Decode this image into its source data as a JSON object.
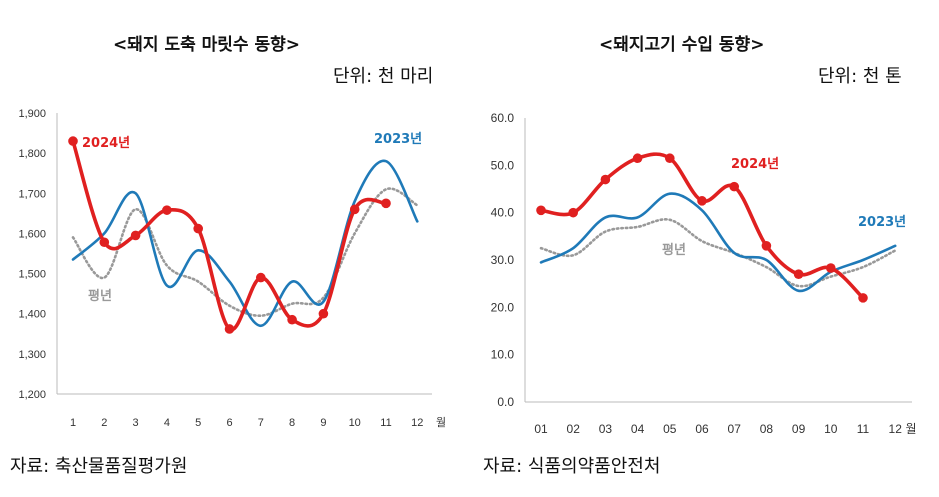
{
  "chart_data": [
    {
      "type": "line",
      "title": "<돼지 도축 마릿수 동향>",
      "unit": "단위: 천 마리",
      "source": "자료: 축산물품질평가원",
      "x_ticks": [
        "1",
        "2",
        "3",
        "4",
        "5",
        "6",
        "7",
        "8",
        "9",
        "10",
        "11",
        "12"
      ],
      "x_unit": "월",
      "ylim": [
        1200,
        1900
      ],
      "y_ticks": [
        "1,200",
        "1,300",
        "1,400",
        "1,500",
        "1,600",
        "1,700",
        "1,800",
        "1,900"
      ],
      "grid": false,
      "series": [
        {
          "name": "2024년",
          "color": "#e02020",
          "style": "solid-markers",
          "x": [
            1,
            2,
            3,
            4,
            5,
            6,
            7,
            8,
            9,
            10,
            11
          ],
          "values": [
            1830,
            1578,
            1595,
            1658,
            1612,
            1362,
            1490,
            1385,
            1400,
            1660,
            1675
          ]
        },
        {
          "name": "2023년",
          "color": "#1f7ab8",
          "style": "solid",
          "x": [
            1,
            2,
            3,
            4,
            5,
            6,
            7,
            8,
            9,
            10,
            11,
            12
          ],
          "values": [
            1535,
            1600,
            1700,
            1470,
            1558,
            1480,
            1370,
            1480,
            1430,
            1680,
            1780,
            1630
          ]
        },
        {
          "name": "평년",
          "color": "#999999",
          "style": "dotted",
          "x": [
            1,
            2,
            3,
            4,
            5,
            6,
            7,
            8,
            9,
            10,
            11,
            12
          ],
          "values": [
            1590,
            1490,
            1660,
            1520,
            1480,
            1420,
            1395,
            1425,
            1440,
            1600,
            1710,
            1670
          ]
        }
      ]
    },
    {
      "type": "line",
      "title": "<돼지고기 수입 동향>",
      "unit": "단위: 천 톤",
      "source": "자료: 식품의약품안전처",
      "x_ticks": [
        "01",
        "02",
        "03",
        "04",
        "05",
        "06",
        "07",
        "08",
        "09",
        "10",
        "11",
        "12"
      ],
      "x_unit": "월",
      "ylim": [
        0,
        60
      ],
      "y_ticks": [
        "0.0",
        "10.0",
        "20.0",
        "30.0",
        "40.0",
        "50.0",
        "60.0"
      ],
      "grid": false,
      "series": [
        {
          "name": "2024년",
          "color": "#e02020",
          "style": "solid-markers",
          "x": [
            1,
            2,
            3,
            4,
            5,
            6,
            7,
            8,
            9,
            10,
            11
          ],
          "values": [
            40.5,
            40.0,
            47.0,
            51.5,
            51.5,
            42.5,
            45.5,
            33.0,
            27.0,
            28.3,
            22.0
          ]
        },
        {
          "name": "2023년",
          "color": "#1f7ab8",
          "style": "solid",
          "x": [
            1,
            2,
            3,
            4,
            5,
            6,
            7,
            8,
            9,
            10,
            11,
            12
          ],
          "values": [
            29.5,
            32.5,
            39.0,
            39.0,
            44.0,
            40.5,
            31.5,
            30.0,
            23.5,
            27.5,
            30.0,
            33.0
          ]
        },
        {
          "name": "평년",
          "color": "#999999",
          "style": "dotted",
          "x": [
            1,
            2,
            3,
            4,
            5,
            6,
            7,
            8,
            9,
            10,
            11,
            12
          ],
          "values": [
            32.5,
            31.0,
            36.0,
            37.0,
            38.5,
            34.0,
            31.5,
            28.5,
            24.5,
            26.5,
            28.5,
            32.0
          ]
        }
      ]
    }
  ]
}
